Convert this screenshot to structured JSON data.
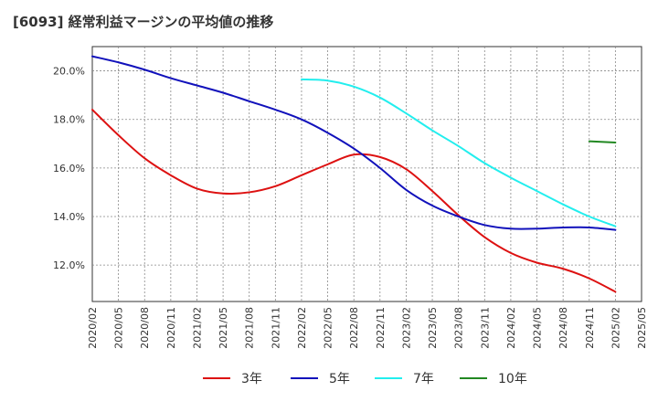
{
  "chart_data": {
    "type": "line",
    "title": "[6093]  経常利益マージンの平均値の推移",
    "xlabel": "",
    "ylabel": "",
    "x_ticks": [
      "2020/02",
      "2020/05",
      "2020/08",
      "2020/11",
      "2021/02",
      "2021/05",
      "2021/08",
      "2021/11",
      "2022/02",
      "2022/05",
      "2022/08",
      "2022/11",
      "2023/02",
      "2023/05",
      "2023/08",
      "2023/11",
      "2024/02",
      "2024/05",
      "2024/08",
      "2024/11",
      "2025/02",
      "2025/05"
    ],
    "y_ticks": [
      "12.0%",
      "14.0%",
      "16.0%",
      "18.0%",
      "20.0%"
    ],
    "y_tick_values": [
      12,
      14,
      16,
      18,
      20
    ],
    "ylim": [
      10.5,
      21.0
    ],
    "grid": true,
    "legend_position": "bottom",
    "series": [
      {
        "name": "3年",
        "color": "#dd1111",
        "x": [
          "2020/02",
          "2020/05",
          "2020/08",
          "2020/11",
          "2021/02",
          "2021/05",
          "2021/08",
          "2021/11",
          "2022/02",
          "2022/05",
          "2022/08",
          "2022/11",
          "2023/02",
          "2023/05",
          "2023/08",
          "2023/11",
          "2024/02",
          "2024/05",
          "2024/08",
          "2024/11",
          "2025/02"
        ],
        "values": [
          18.4,
          17.35,
          16.4,
          15.7,
          15.15,
          14.95,
          15.0,
          15.25,
          15.7,
          16.15,
          16.55,
          16.45,
          15.95,
          15.05,
          14.05,
          13.15,
          12.5,
          12.1,
          11.85,
          11.45,
          10.9
        ]
      },
      {
        "name": "5年",
        "color": "#1111bb",
        "x": [
          "2020/02",
          "2020/05",
          "2020/08",
          "2020/11",
          "2021/02",
          "2021/05",
          "2021/08",
          "2021/11",
          "2022/02",
          "2022/05",
          "2022/08",
          "2022/11",
          "2023/02",
          "2023/05",
          "2023/08",
          "2023/11",
          "2024/02",
          "2024/05",
          "2024/08",
          "2024/11",
          "2025/02"
        ],
        "values": [
          20.6,
          20.35,
          20.05,
          19.7,
          19.4,
          19.1,
          18.75,
          18.4,
          18.0,
          17.45,
          16.8,
          16.0,
          15.1,
          14.45,
          14.0,
          13.65,
          13.5,
          13.5,
          13.55,
          13.55,
          13.45
        ]
      },
      {
        "name": "7年",
        "color": "#22eeee",
        "x": [
          "2022/02",
          "2022/05",
          "2022/08",
          "2022/11",
          "2023/02",
          "2023/05",
          "2023/08",
          "2023/11",
          "2024/02",
          "2024/05",
          "2024/08",
          "2024/11",
          "2025/02"
        ],
        "values": [
          19.65,
          19.6,
          19.35,
          18.9,
          18.25,
          17.55,
          16.9,
          16.2,
          15.6,
          15.05,
          14.5,
          14.0,
          13.6
        ]
      },
      {
        "name": "10年",
        "color": "#228822",
        "x": [
          "2024/11",
          "2025/02"
        ],
        "values": [
          17.1,
          17.05
        ]
      }
    ]
  }
}
